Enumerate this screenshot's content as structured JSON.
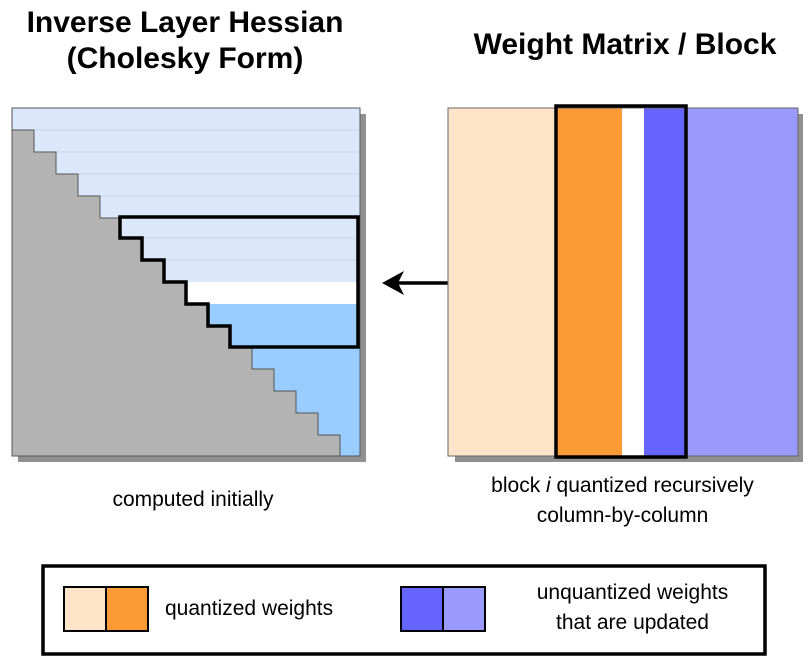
{
  "left_panel": {
    "title_line1": "Inverse Layer Hessian",
    "title_line2": "(Cholesky Form)",
    "caption": "computed initially"
  },
  "right_panel": {
    "title": "Weight Matrix / Block",
    "caption_prefix": "block ",
    "caption_index": "i",
    "caption_suffix": " quantized recursively",
    "caption_line2": "column-by-column"
  },
  "legend": {
    "quantized_label": "quantized weights",
    "unquantized_line1": "unquantized weights",
    "unquantized_line2": "that are updated"
  },
  "colors": {
    "quantized_light": "#fde3c7",
    "quantized_strong": "#fc9a35",
    "unquantized_strong": "#6565fe",
    "unquantized_light": "#9a9afd",
    "hessian_upper": "#dbe8fc",
    "hessian_lower": "#99ccff",
    "hessian_gray": "#b3b3b3"
  }
}
